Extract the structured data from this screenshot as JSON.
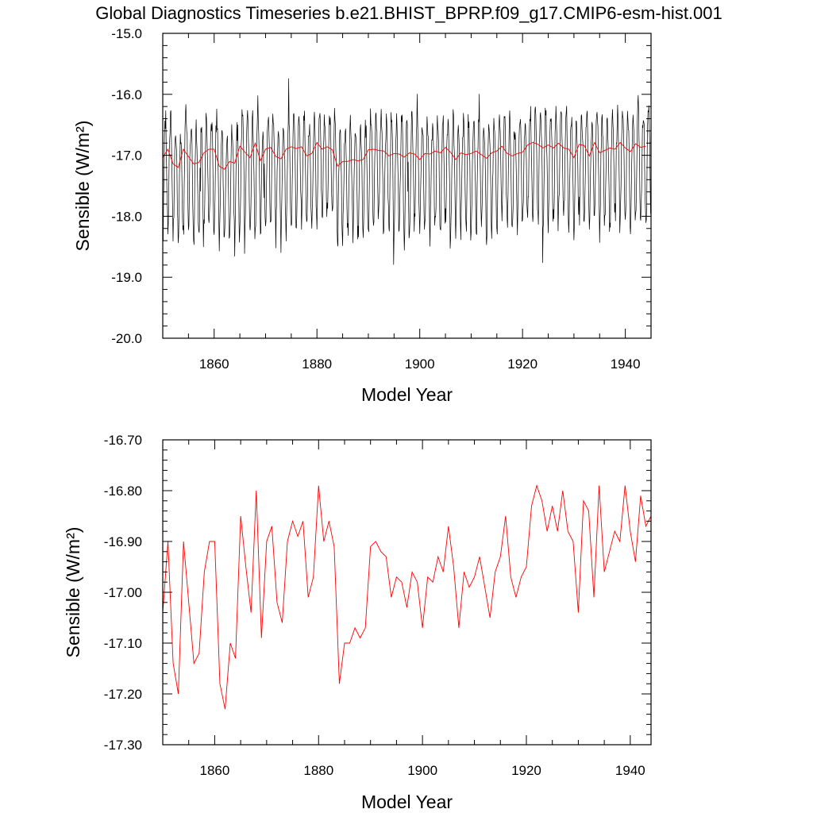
{
  "title": "Global Diagnostics Timeseries b.e21.BHIST_BPRP.f09_g17.CMIP6-esm-hist.001",
  "colors": {
    "monthly": "#000000",
    "annual": "#ff0000",
    "frame": "#000000"
  },
  "chart_data": [
    {
      "type": "line",
      "xlabel": "Model Year",
      "ylabel": "Sensible (W/m²)",
      "xlim": [
        1850,
        1945
      ],
      "ylim": [
        -20.0,
        -15.0
      ],
      "xticks": [
        "1860",
        "1880",
        "1900",
        "1920",
        "1940"
      ],
      "yticks": [
        "-15.0",
        "-16.0",
        "-17.0",
        "-18.0",
        "-19.0",
        "-20.0"
      ],
      "grid": false,
      "series": [
        {
          "color": "#000000",
          "description_visible": "monthly values oscillating seasonally between about -16.0 and -18.3 W/m2",
          "amplitude_range": [
            -18.3,
            -16.0
          ],
          "extremes": {
            "max": -15.5,
            "min": -19.0
          }
        },
        {
          "color": "#ff0000",
          "x": [
            1850,
            1851,
            1852,
            1853,
            1854,
            1855,
            1856,
            1857,
            1858,
            1859,
            1860,
            1861,
            1862,
            1863,
            1864,
            1865,
            1866,
            1867,
            1868,
            1869,
            1870,
            1871,
            1872,
            1873,
            1874,
            1875,
            1876,
            1877,
            1878,
            1879,
            1880,
            1881,
            1882,
            1883,
            1884,
            1885,
            1886,
            1887,
            1888,
            1889,
            1890,
            1891,
            1892,
            1893,
            1894,
            1895,
            1896,
            1897,
            1898,
            1899,
            1900,
            1901,
            1902,
            1903,
            1904,
            1905,
            1906,
            1907,
            1908,
            1909,
            1910,
            1911,
            1912,
            1913,
            1914,
            1915,
            1916,
            1917,
            1918,
            1919,
            1920,
            1921,
            1922,
            1923,
            1924,
            1925,
            1926,
            1927,
            1928,
            1929,
            1930,
            1931,
            1932,
            1933,
            1934,
            1935,
            1936,
            1937,
            1938,
            1939,
            1940,
            1941,
            1942,
            1943,
            1944
          ],
          "values": [
            -17.04,
            -16.9,
            -17.14,
            -17.2,
            -16.9,
            -17.02,
            -17.14,
            -17.12,
            -16.96,
            -16.9,
            -16.9,
            -17.18,
            -17.23,
            -17.1,
            -17.13,
            -16.85,
            -16.95,
            -17.04,
            -16.8,
            -17.09,
            -16.9,
            -16.87,
            -17.02,
            -17.06,
            -16.9,
            -16.86,
            -16.89,
            -16.86,
            -17.01,
            -16.97,
            -16.79,
            -16.9,
            -16.86,
            -16.91,
            -17.18,
            -17.1,
            -17.1,
            -17.07,
            -17.09,
            -17.07,
            -16.91,
            -16.9,
            -16.92,
            -16.93,
            -17.01,
            -16.97,
            -16.98,
            -17.03,
            -16.96,
            -16.98,
            -17.07,
            -16.97,
            -16.98,
            -16.93,
            -16.96,
            -16.87,
            -16.95,
            -17.07,
            -16.96,
            -16.99,
            -16.97,
            -16.93,
            -16.99,
            -17.05,
            -16.96,
            -16.93,
            -16.85,
            -16.97,
            -17.01,
            -16.97,
            -16.95,
            -16.83,
            -16.79,
            -16.82,
            -16.88,
            -16.83,
            -16.88,
            -16.8,
            -16.88,
            -16.9,
            -17.04,
            -16.82,
            -16.84,
            -17.01,
            -16.79,
            -16.96,
            -16.92,
            -16.88,
            -16.9,
            -16.79,
            -16.88,
            -16.94,
            -16.81,
            -16.87,
            -16.85
          ]
        }
      ]
    },
    {
      "type": "line",
      "xlabel": "Model Year",
      "ylabel": "Sensible (W/m²)",
      "xlim": [
        1850,
        1944
      ],
      "ylim": [
        -17.3,
        -16.7
      ],
      "xticks": [
        "1860",
        "1880",
        "1900",
        "1920",
        "1940"
      ],
      "yticks": [
        "-16.70",
        "-16.80",
        "-16.90",
        "-17.00",
        "-17.10",
        "-17.20",
        "-17.30"
      ],
      "grid": false,
      "series": [
        {
          "color": "#ff0000",
          "x": [
            1850,
            1851,
            1852,
            1853,
            1854,
            1855,
            1856,
            1857,
            1858,
            1859,
            1860,
            1861,
            1862,
            1863,
            1864,
            1865,
            1866,
            1867,
            1868,
            1869,
            1870,
            1871,
            1872,
            1873,
            1874,
            1875,
            1876,
            1877,
            1878,
            1879,
            1880,
            1881,
            1882,
            1883,
            1884,
            1885,
            1886,
            1887,
            1888,
            1889,
            1890,
            1891,
            1892,
            1893,
            1894,
            1895,
            1896,
            1897,
            1898,
            1899,
            1900,
            1901,
            1902,
            1903,
            1904,
            1905,
            1906,
            1907,
            1908,
            1909,
            1910,
            1911,
            1912,
            1913,
            1914,
            1915,
            1916,
            1917,
            1918,
            1919,
            1920,
            1921,
            1922,
            1923,
            1924,
            1925,
            1926,
            1927,
            1928,
            1929,
            1930,
            1931,
            1932,
            1933,
            1934,
            1935,
            1936,
            1937,
            1938,
            1939,
            1940,
            1941,
            1942,
            1943,
            1944
          ],
          "values": [
            -17.04,
            -16.9,
            -17.14,
            -17.2,
            -16.9,
            -17.02,
            -17.14,
            -17.12,
            -16.96,
            -16.9,
            -16.9,
            -17.18,
            -17.23,
            -17.1,
            -17.13,
            -16.85,
            -16.95,
            -17.04,
            -16.8,
            -17.09,
            -16.9,
            -16.87,
            -17.02,
            -17.06,
            -16.9,
            -16.86,
            -16.89,
            -16.86,
            -17.01,
            -16.97,
            -16.79,
            -16.9,
            -16.86,
            -16.91,
            -17.18,
            -17.1,
            -17.1,
            -17.07,
            -17.09,
            -17.07,
            -16.91,
            -16.9,
            -16.92,
            -16.93,
            -17.01,
            -16.97,
            -16.98,
            -17.03,
            -16.96,
            -16.98,
            -17.07,
            -16.97,
            -16.98,
            -16.93,
            -16.96,
            -16.87,
            -16.95,
            -17.07,
            -16.96,
            -16.99,
            -16.97,
            -16.93,
            -16.99,
            -17.05,
            -16.96,
            -16.93,
            -16.85,
            -16.97,
            -17.01,
            -16.97,
            -16.95,
            -16.83,
            -16.79,
            -16.82,
            -16.88,
            -16.83,
            -16.88,
            -16.8,
            -16.88,
            -16.9,
            -17.04,
            -16.82,
            -16.84,
            -17.01,
            -16.79,
            -16.96,
            -16.92,
            -16.88,
            -16.9,
            -16.79,
            -16.88,
            -16.94,
            -16.81,
            -16.87,
            -16.85
          ]
        }
      ]
    }
  ]
}
